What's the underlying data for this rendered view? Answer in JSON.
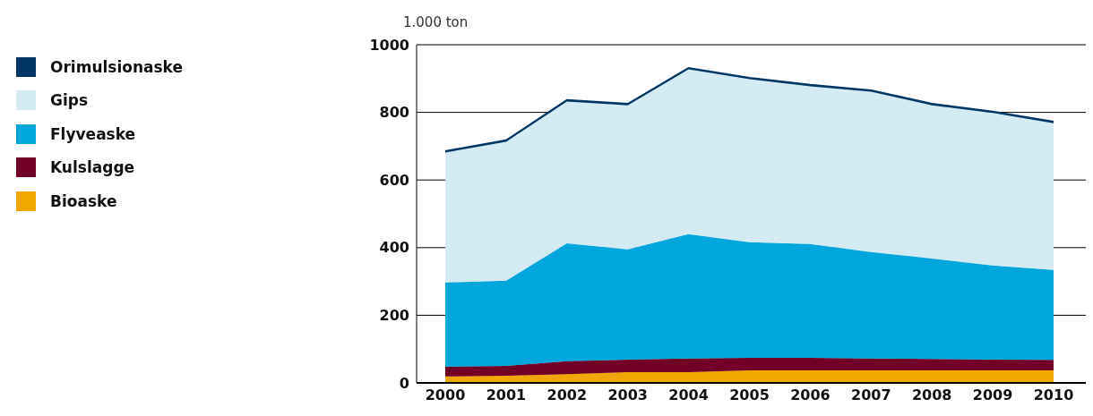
{
  "chart_data": {
    "type": "area",
    "stacked": true,
    "ylabel": "1.000 ton",
    "categories": [
      "2000",
      "2001",
      "2002",
      "2003",
      "2004",
      "2005",
      "2006",
      "2007",
      "2008",
      "2009",
      "2010"
    ],
    "series": [
      {
        "name": "Bioaske",
        "color": "#f0a800",
        "values": [
          19,
          21,
          26,
          32,
          32,
          37,
          37,
          37,
          37,
          37,
          37
        ]
      },
      {
        "name": "Kulslagge",
        "color": "#720026",
        "values": [
          29,
          29,
          38,
          37,
          40,
          37,
          37,
          35,
          34,
          32,
          31
        ]
      },
      {
        "name": "Flyveaske",
        "color": "#00a7dd",
        "values": [
          249,
          252,
          349,
          326,
          368,
          342,
          337,
          315,
          297,
          278,
          266
        ]
      },
      {
        "name": "Gips",
        "color": "#d4ebf3",
        "values": [
          384,
          411,
          419,
          426,
          487,
          482,
          466,
          474,
          453,
          451,
          434
        ]
      },
      {
        "name": "Orimulsionaske",
        "color": "#003764",
        "values": [
          5,
          5,
          5,
          5,
          5,
          5,
          5,
          5,
          5,
          5,
          5
        ]
      }
    ],
    "ylim": [
      0,
      1000
    ],
    "yticks": [
      0,
      200,
      400,
      600,
      800,
      1000
    ],
    "grid": "y",
    "legend": "top left"
  }
}
